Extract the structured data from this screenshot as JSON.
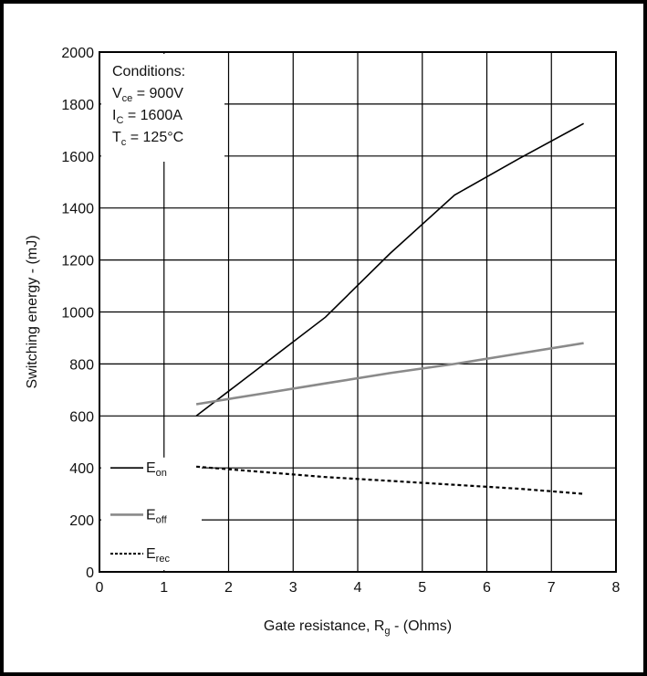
{
  "chart_data": {
    "type": "line",
    "title": "",
    "xlabel": {
      "main": "Gate resistance, R",
      "sub": "g",
      "tail": " - (Ohms)"
    },
    "ylabel": "Switching energy - (mJ)",
    "xlim": [
      0,
      8
    ],
    "ylim": [
      0,
      2000
    ],
    "xticks": [
      "0",
      "1",
      "2",
      "3",
      "4",
      "5",
      "6",
      "7",
      "8"
    ],
    "yticks": [
      "0",
      "200",
      "400",
      "600",
      "800",
      "1000",
      "1200",
      "1400",
      "1600",
      "1800",
      "2000"
    ],
    "grid": true,
    "conditions": [
      {
        "main": "Conditions:",
        "sub": "",
        "tail": ""
      },
      {
        "main": "V",
        "sub": "ce",
        "tail": " = 900V"
      },
      {
        "main": "I",
        "sub": "C",
        "tail": " = 1600A"
      },
      {
        "main": "T",
        "sub": "c",
        "tail": " = 125°C"
      }
    ],
    "legend_position": "bottom-left",
    "series": [
      {
        "name_main": "E",
        "name_sub": "on",
        "color": "#000000",
        "style": "solid",
        "x": [
          1.5,
          2.5,
          3.5,
          4.5,
          5.5,
          6.5,
          7.5
        ],
        "y": [
          600,
          790,
          980,
          1225,
          1450,
          1590,
          1725
        ]
      },
      {
        "name_main": "E",
        "name_sub": "off",
        "color": "#8a8a8a",
        "style": "solid",
        "x": [
          1.5,
          2.5,
          3.5,
          4.5,
          5.5,
          6.5,
          7.5
        ],
        "y": [
          645,
          685,
          725,
          765,
          800,
          840,
          880
        ]
      },
      {
        "name_main": "E",
        "name_sub": "rec",
        "color": "#000000",
        "style": "dashed",
        "x": [
          1.5,
          2.5,
          3.5,
          4.5,
          5.5,
          6.5,
          7.5
        ],
        "y": [
          405,
          385,
          365,
          350,
          335,
          320,
          300
        ]
      }
    ]
  }
}
